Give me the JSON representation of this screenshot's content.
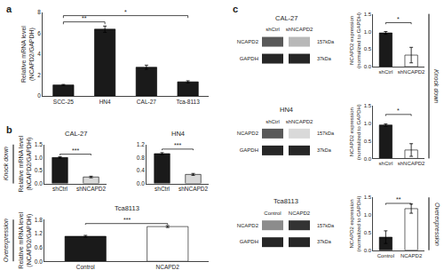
{
  "chart_data": [
    {
      "type": "bar",
      "panel_label": "a",
      "categories": [
        "SCC-25",
        "HN4",
        "CAL-27",
        "Tca-8113"
      ],
      "values": [
        1.05,
        6.4,
        2.75,
        1.35
      ],
      "errors": [
        0.05,
        0.3,
        0.2,
        0.1
      ],
      "ylabel": "Relative mRNA level\n(NCAPD2/GAPDH)",
      "ylim": [
        0,
        8
      ],
      "yticks": [
        0,
        2,
        4,
        6,
        8
      ],
      "color": "#1a1a1a",
      "grid": false,
      "annotations": [
        {
          "text": "**",
          "x": [
            "SCC-25",
            "HN4"
          ],
          "y": 7.1
        },
        {
          "text": "*",
          "x": [
            "SCC-25",
            "Tca-8113"
          ],
          "y": 7.7
        }
      ]
    },
    {
      "type": "bar",
      "panel_label": "b",
      "group": "Knock down",
      "title": "CAL-27",
      "categories": [
        "shCtrl",
        "shNCAPD2"
      ],
      "values": [
        1.0,
        0.25
      ],
      "errors": [
        0.03,
        0.03
      ],
      "ylabel": "Relative mRNA level\n(NCAPD2/GAPDH)",
      "ylim": [
        0,
        1.5
      ],
      "yticks": [
        {
          "value": 0,
          "label": "0.0"
        },
        0.5,
        {
          "value": 1,
          "label": "1.0"
        },
        1.5
      ],
      "colors": [
        "#1a1a1a",
        "#d8d8d8"
      ],
      "grid": false,
      "annotations": [
        {
          "text": "***",
          "x": [
            "shCtrl",
            "shNCAPD2"
          ],
          "y": 1.13
        }
      ]
    },
    {
      "type": "bar",
      "group": "Knock down",
      "title": "HN4",
      "categories": [
        "shCtrl",
        "shNCAPD2"
      ],
      "values": [
        0.92,
        0.28
      ],
      "errors": [
        0.03,
        0.03
      ],
      "ylim": [
        0,
        1.2
      ],
      "yticks": [
        {
          "value": 0,
          "label": "0.0"
        },
        0.4,
        0.8,
        1.2
      ],
      "colors": [
        "#1a1a1a",
        "#d8d8d8"
      ],
      "grid": false,
      "annotations": [
        {
          "text": "***",
          "x": [
            "shCtrl",
            "shNCAPD2"
          ],
          "y": 1.06
        }
      ]
    },
    {
      "type": "bar",
      "group": "Overexpression",
      "title": "Tca8113",
      "categories": [
        "Control",
        "NCAPD2"
      ],
      "values": [
        1.08,
        1.5
      ],
      "errors": [
        0.04,
        0.04
      ],
      "ylabel": "Relative mRNA level\n(NCAPD2/GAPDH)",
      "ylim": [
        0,
        1.8
      ],
      "yticks": [
        {
          "value": 0,
          "label": "0.0"
        },
        0.6,
        1.2,
        1.8
      ],
      "colors": [
        "#1a1a1a",
        "#ffffff"
      ],
      "grid": false,
      "annotations": [
        {
          "text": "***",
          "x": [
            "Control",
            "NCAPD2"
          ],
          "y": 1.63
        }
      ]
    },
    {
      "type": "heatmap",
      "panel_label": "c",
      "group": "Knock down",
      "title": "CAL-27",
      "categories": [
        "shCtrl",
        "shNCAPD2"
      ],
      "rows": [
        "NCAPD2",
        "GAPDH"
      ],
      "row_notes": [
        "157kDa",
        "37kDa"
      ],
      "z": [
        [
          0.35,
          0.72
        ],
        [
          0.15,
          0.15
        ]
      ],
      "zlim": [
        0,
        1
      ]
    },
    {
      "type": "heatmap",
      "group": "Knock down",
      "title": "HN4",
      "categories": [
        "shCtrl",
        "shNCAPD2"
      ],
      "rows": [
        "NCAPD2",
        "GAPDH"
      ],
      "row_notes": [
        "157kDa",
        "37kDa"
      ],
      "z": [
        [
          0.35,
          0.85
        ],
        [
          0.15,
          0.15
        ]
      ],
      "zlim": [
        0,
        1
      ]
    },
    {
      "type": "heatmap",
      "group": "Overexpression",
      "title": "Tca8113",
      "categories": [
        "Control",
        "NCAPD2"
      ],
      "rows": [
        "NCAPD2",
        "GAPDH"
      ],
      "row_notes": [
        "157kDa",
        "37kDa"
      ],
      "z": [
        [
          0.55,
          0.2
        ],
        [
          0.15,
          0.15
        ]
      ],
      "zlim": [
        0,
        1
      ]
    },
    {
      "type": "bar",
      "group": "Knock down",
      "categories": [
        "shCtrl",
        "shNCAPD2"
      ],
      "values": [
        0.96,
        0.33
      ],
      "errors": [
        0.04,
        0.22
      ],
      "ylabel": "NCAPD2 expression\n(normalized to GAPDH)",
      "ylim": [
        0,
        1.5
      ],
      "yticks": [
        {
          "value": 0,
          "label": "0.0"
        },
        0.5,
        {
          "value": 1,
          "label": "1.0"
        },
        1.5
      ],
      "colors": [
        "#1a1a1a",
        "#ffffff"
      ],
      "grid": false,
      "annotations": [
        {
          "text": "*",
          "x": [
            "shCtrl",
            "shNCAPD2"
          ],
          "y": 1.25
        }
      ]
    },
    {
      "type": "bar",
      "group": "Knock down",
      "categories": [
        "shCtrl",
        "shNCAPD2"
      ],
      "values": [
        0.95,
        0.24
      ],
      "errors": [
        0.03,
        0.18
      ],
      "ylabel": "NCAPD2 expression\n(normalized to GAPDH)",
      "ylim": [
        0,
        1.5
      ],
      "yticks": [
        {
          "value": 0,
          "label": "0.0"
        },
        0.5,
        {
          "value": 1,
          "label": "1.0"
        },
        1.5
      ],
      "colors": [
        "#1a1a1a",
        "#ffffff"
      ],
      "grid": false,
      "annotations": [
        {
          "text": "*",
          "x": [
            "shCtrl",
            "shNCAPD2"
          ],
          "y": 1.25
        }
      ]
    },
    {
      "type": "bar",
      "group": "Overexpression",
      "categories": [
        "Control",
        "NCAPD2"
      ],
      "values": [
        0.37,
        1.18
      ],
      "errors": [
        0.18,
        0.13
      ],
      "ylabel": "NCAPD2 expression\n(normalized to GAPDH)",
      "ylim": [
        0,
        1.5
      ],
      "yticks": [
        {
          "value": 0,
          "label": "0.0"
        },
        0.5,
        {
          "value": 1,
          "label": "1.0"
        },
        1.5
      ],
      "colors": [
        "#1a1a1a",
        "#ffffff"
      ],
      "grid": false,
      "annotations": [
        {
          "text": "**",
          "x": [
            "Control",
            "NCAPD2"
          ],
          "y": 1.33
        }
      ]
    }
  ]
}
